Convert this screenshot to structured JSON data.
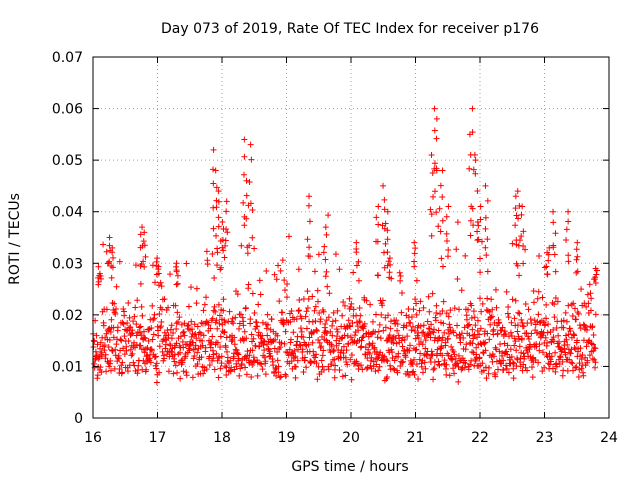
{
  "chart_data": {
    "type": "scatter",
    "title": "Day 073 of 2019, Rate Of TEC Index for receiver p176",
    "xlabel": "GPS time / hours",
    "ylabel": "ROTI / TECUs",
    "xlim": [
      16,
      24
    ],
    "ylim": [
      0,
      0.07
    ],
    "xticks": [
      16,
      17,
      18,
      19,
      20,
      21,
      22,
      23,
      24
    ],
    "yticks": [
      0,
      0.01,
      0.02,
      0.03,
      0.04,
      0.05,
      0.06,
      0.07
    ],
    "ytick_labels": [
      "0",
      "0.01",
      "0.02",
      "0.03",
      "0.04",
      "0.05",
      "0.06",
      "0.07"
    ],
    "grid": true,
    "marker": "+",
    "series": [
      {
        "name": "ROTI",
        "color": "#ff0000",
        "band_min": 0.006,
        "band_max": 0.024,
        "x": [
          16.1,
          16.25,
          16.3,
          16.75,
          16.8,
          17.0,
          17.3,
          17.85,
          17.9,
          17.95,
          18.0,
          18.05,
          18.35,
          18.4,
          18.45,
          19.35,
          19.6,
          20.1,
          20.4,
          20.5,
          20.55,
          20.6,
          21.0,
          21.25,
          21.3,
          21.35,
          21.4,
          21.5,
          21.85,
          21.9,
          21.95,
          22.0,
          22.1,
          22.55,
          22.6,
          22.65,
          23.05,
          23.15,
          23.35,
          23.5,
          23.8
        ],
        "y": [
          0.028,
          0.035,
          0.033,
          0.037,
          0.036,
          0.031,
          0.03,
          0.052,
          0.048,
          0.044,
          0.038,
          0.042,
          0.054,
          0.046,
          0.053,
          0.043,
          0.037,
          0.034,
          0.041,
          0.045,
          0.04,
          0.031,
          0.034,
          0.051,
          0.06,
          0.058,
          0.048,
          0.041,
          0.055,
          0.06,
          0.05,
          0.041,
          0.045,
          0.043,
          0.044,
          0.041,
          0.033,
          0.04,
          0.04,
          0.034,
          0.029
        ]
      }
    ]
  }
}
